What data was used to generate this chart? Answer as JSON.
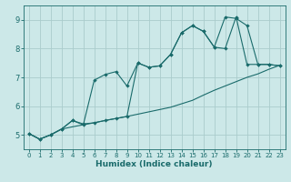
{
  "xlabel": "Humidex (Indice chaleur)",
  "background_color": "#cce8e8",
  "grid_color": "#aacccc",
  "line_color": "#1a6b6b",
  "xlim": [
    -0.5,
    23.5
  ],
  "ylim": [
    4.5,
    9.5
  ],
  "yticks": [
    5,
    6,
    7,
    8,
    9
  ],
  "xticks": [
    0,
    1,
    2,
    3,
    4,
    5,
    6,
    7,
    8,
    9,
    10,
    11,
    12,
    13,
    14,
    15,
    16,
    17,
    18,
    19,
    20,
    21,
    22,
    23
  ],
  "line1_x": [
    0,
    1,
    2,
    3,
    4,
    5,
    6,
    7,
    8,
    9,
    10,
    11,
    12,
    13,
    14,
    15,
    16,
    17,
    18,
    19,
    20,
    21,
    22,
    23
  ],
  "line1_y": [
    5.05,
    4.85,
    5.0,
    5.2,
    5.28,
    5.35,
    5.42,
    5.5,
    5.57,
    5.64,
    5.72,
    5.8,
    5.88,
    5.96,
    6.08,
    6.2,
    6.38,
    6.55,
    6.7,
    6.85,
    7.0,
    7.12,
    7.28,
    7.42
  ],
  "line2_x": [
    0,
    1,
    2,
    3,
    4,
    5,
    6,
    7,
    8,
    9,
    10,
    11,
    12,
    13,
    14,
    15,
    16,
    17,
    18,
    19,
    20,
    21,
    22,
    23
  ],
  "line2_y": [
    5.05,
    4.85,
    5.0,
    5.2,
    5.5,
    5.35,
    6.9,
    7.1,
    7.2,
    6.7,
    7.5,
    7.35,
    7.4,
    7.8,
    8.55,
    8.8,
    8.6,
    8.05,
    8.0,
    9.1,
    7.45,
    7.45,
    7.45,
    7.4
  ],
  "line3_x": [
    0,
    1,
    2,
    3,
    4,
    5,
    6,
    7,
    8,
    9,
    10,
    11,
    12,
    13,
    14,
    15,
    16,
    17,
    18,
    19,
    20,
    21,
    22,
    23
  ],
  "line3_y": [
    5.05,
    4.85,
    5.0,
    5.2,
    5.5,
    5.38,
    5.42,
    5.5,
    5.57,
    5.64,
    7.5,
    7.35,
    7.4,
    7.8,
    8.55,
    8.8,
    8.6,
    8.05,
    9.1,
    9.05,
    8.8,
    7.45,
    7.45,
    7.4
  ]
}
